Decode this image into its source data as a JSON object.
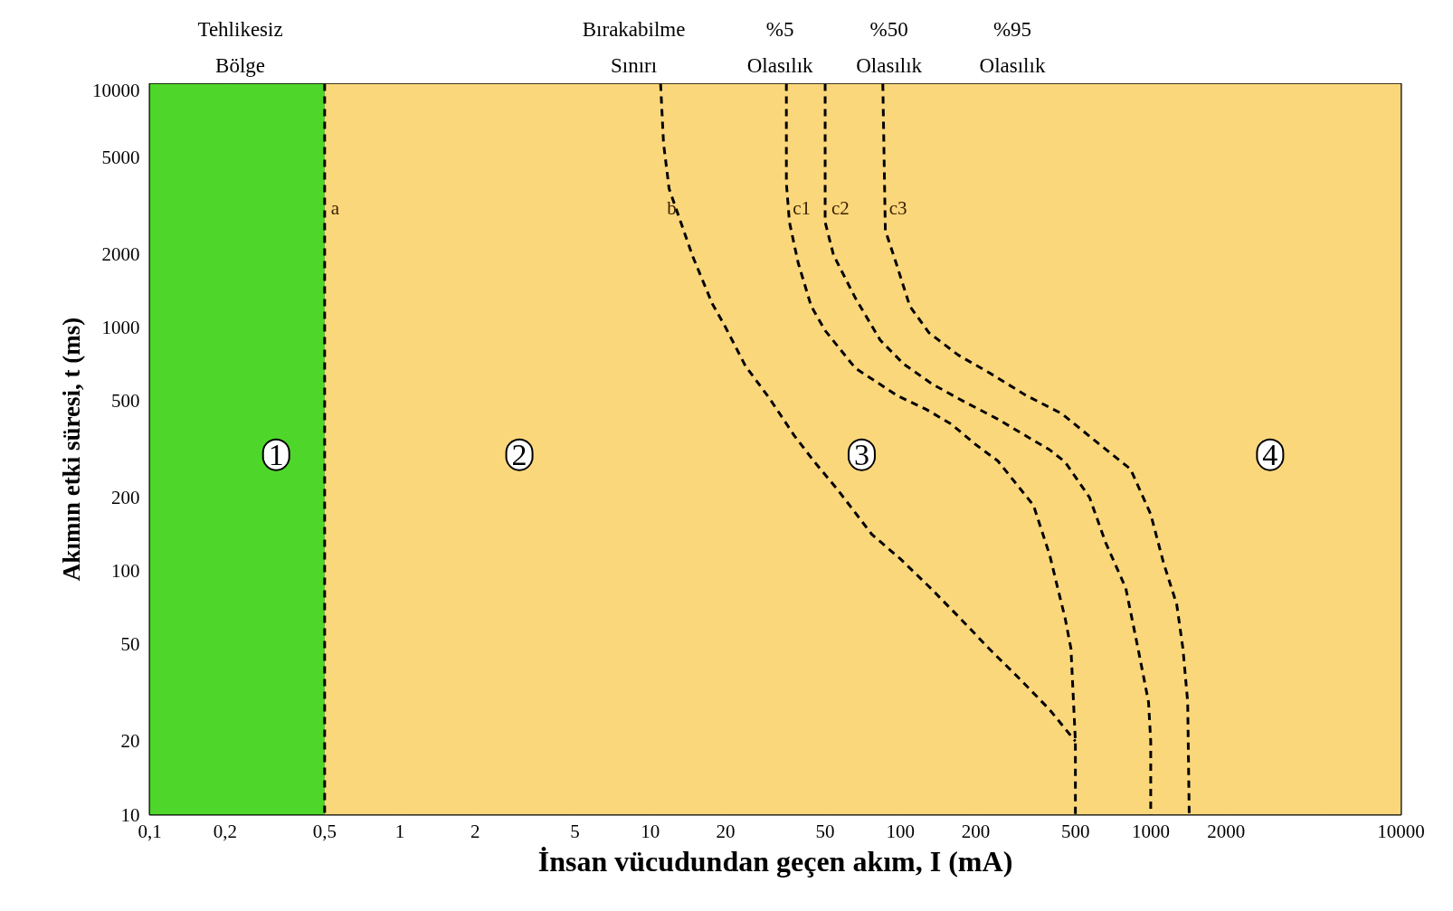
{
  "chart_data": {
    "type": "line",
    "xlabel": "İnsan vücudundan geçen akım, I (mA)",
    "ylabel": "Akımın etki süresi, t (ms)",
    "log": "xy",
    "grid": true,
    "marker": "none",
    "line_style": "dashed",
    "xlim": [
      0.1,
      10000
    ],
    "ylim": [
      10,
      10000
    ],
    "xticks": [
      {
        "value": 0.1,
        "label": "0,1"
      },
      {
        "value": 0.2,
        "label": "0,2"
      },
      {
        "value": 0.5,
        "label": "0,5"
      },
      1,
      2,
      5,
      10,
      20,
      50,
      100,
      200,
      500,
      1000,
      2000,
      {
        "value": 5000,
        "label": null
      },
      10000
    ],
    "yticks": [
      10,
      20,
      50,
      100,
      200,
      500,
      1000,
      2000,
      5000,
      10000
    ],
    "bands": [
      {
        "axis": "x",
        "from": 0.1,
        "to": 0.5,
        "color": "#4fd62a"
      },
      {
        "axis": "x",
        "from": 0.5,
        "to": 10000,
        "color": "#fbd77c"
      }
    ],
    "series": [
      {
        "name": "a",
        "color": "#000000",
        "x": [
          0.5,
          0.5
        ],
        "values": [
          10000,
          10
        ]
      },
      {
        "name": "b",
        "color": "#000000",
        "x": [
          11,
          11.3,
          11.9,
          14.8,
          17.7,
          20,
          24,
          30,
          37.6,
          45,
          56,
          77,
          100,
          132,
          173,
          226,
          300,
          394,
          500
        ],
        "values": [
          10000,
          5700,
          3700,
          1950,
          1250,
          1000,
          695,
          510,
          360,
          283,
          216,
          141,
          112,
          85,
          64,
          48,
          36,
          27,
          20
        ]
      },
      {
        "name": "c1",
        "color": "#000000",
        "x": [
          35,
          35,
          36,
          39,
          44,
          50,
          66,
          97,
          127,
          160,
          200,
          245,
          340,
          395,
          425,
          455,
          480,
          500,
          500
        ],
        "values": [
          10000,
          3900,
          2700,
          1840,
          1220,
          970,
          680,
          525,
          460,
          400,
          330,
          283,
          186,
          116,
          85,
          64,
          48,
          20,
          10
        ]
      },
      {
        "name": "c2",
        "color": "#000000",
        "x": [
          50,
          50,
          54,
          66,
          83,
          103,
          134,
          180,
          245,
          315,
          395,
          455,
          570,
          660,
          795,
          890,
          980,
          1000,
          1000
        ],
        "values": [
          10000,
          2700,
          1980,
          1320,
          886,
          707,
          585,
          495,
          420,
          360,
          314,
          280,
          200,
          131,
          85,
          48,
          29,
          20,
          10
        ]
      },
      {
        "name": "c3",
        "color": "#000000",
        "x": [
          85,
          87,
          96,
          109,
          130,
          170,
          227,
          316,
          440,
          613,
          830,
          1000,
          1125,
          1270,
          1345,
          1405,
          1425
        ],
        "values": [
          10000,
          2500,
          1840,
          1220,
          950,
          770,
          650,
          527,
          443,
          336,
          262,
          171,
          108,
          73,
          48,
          29,
          10
        ]
      }
    ],
    "annotations": [
      {
        "text": "Tehlikesiz\nBölge",
        "x": 0.23,
        "y": 10000
      },
      {
        "text": "Bırakabilme\nSınırı",
        "x": 8.6,
        "y": 10000
      },
      {
        "text": "%5\nOlasılık",
        "x": 33,
        "y": 10000
      },
      {
        "text": "%50\nOlasılık",
        "x": 90,
        "y": 10000
      },
      {
        "text": "%95\nOlasılık",
        "x": 280,
        "y": 10000
      },
      {
        "text": "1",
        "x": 0.32,
        "y": 300
      },
      {
        "text": "2",
        "x": 3,
        "y": 300
      },
      {
        "text": "3",
        "x": 70,
        "y": 300
      },
      {
        "text": "4",
        "x": 3000,
        "y": 300
      }
    ]
  }
}
